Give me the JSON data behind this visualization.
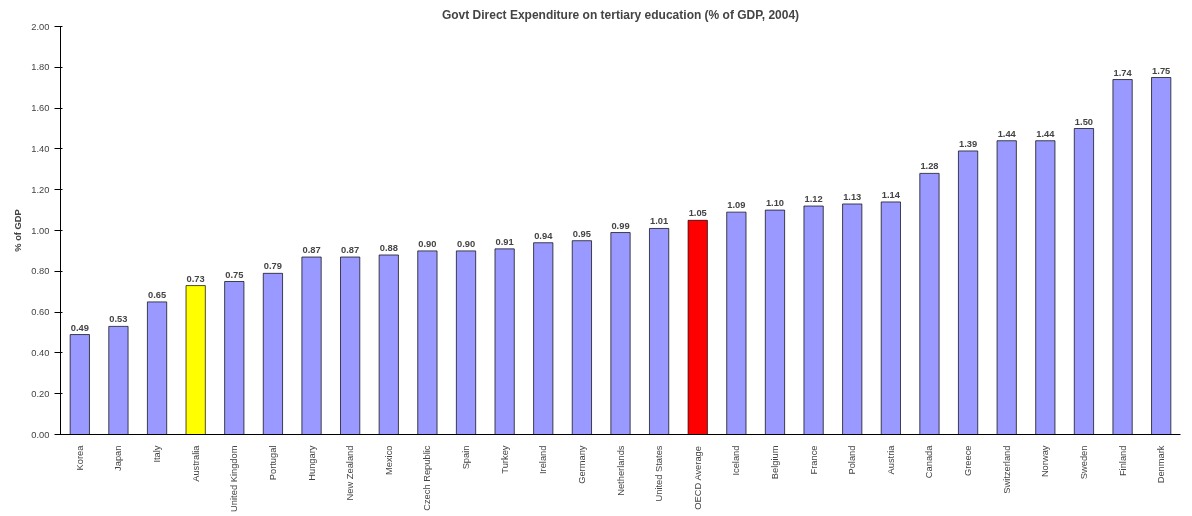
{
  "chart_data": {
    "type": "bar",
    "title": "Govt Direct Expenditure on tertiary education (% of GDP, 2004)",
    "ylabel": "% of GDP",
    "categories": [
      "Korea",
      "Japan",
      "Italy",
      "Australia",
      "United Kingdom",
      "Portugal",
      "Hungary",
      "New Zealand",
      "Mexico",
      "Czech Republic",
      "Spain",
      "Turkey",
      "Ireland",
      "Germany",
      "Netherlands",
      "United States",
      "OECD Average",
      "Iceland",
      "Belgium",
      "France",
      "Poland",
      "Austria",
      "Canada",
      "Greece",
      "Switzerland",
      "Norway",
      "Sweden",
      "Finland",
      "Denmark"
    ],
    "values": [
      0.49,
      0.53,
      0.65,
      0.73,
      0.75,
      0.79,
      0.87,
      0.87,
      0.88,
      0.9,
      0.9,
      0.91,
      0.94,
      0.95,
      0.99,
      1.01,
      1.05,
      1.09,
      1.1,
      1.12,
      1.13,
      1.14,
      1.28,
      1.39,
      1.44,
      1.44,
      1.5,
      1.74,
      1.75
    ],
    "value_labels": [
      "0.49",
      "0.53",
      "0.65",
      "0.73",
      "0.75",
      "0.79",
      "0.87",
      "0.87",
      "0.88",
      "0.90",
      "0.90",
      "0.91",
      "0.94",
      "0.95",
      "0.99",
      "1.01",
      "1.05",
      "1.09",
      "1.10",
      "1.12",
      "1.13",
      "1.14",
      "1.28",
      "1.39",
      "1.44",
      "1.44",
      "1.50",
      "1.74",
      "1.75"
    ],
    "colors": [
      "#9999ff",
      "#9999ff",
      "#9999ff",
      "#ffff00",
      "#9999ff",
      "#9999ff",
      "#9999ff",
      "#9999ff",
      "#9999ff",
      "#9999ff",
      "#9999ff",
      "#9999ff",
      "#9999ff",
      "#9999ff",
      "#9999ff",
      "#9999ff",
      "#ff0000",
      "#9999ff",
      "#9999ff",
      "#9999ff",
      "#9999ff",
      "#9999ff",
      "#9999ff",
      "#9999ff",
      "#9999ff",
      "#9999ff",
      "#9999ff",
      "#9999ff",
      "#9999ff"
    ],
    "ylim": [
      0,
      2
    ],
    "yticks": [
      {
        "value": 0,
        "label": "0.00"
      },
      {
        "value": 0.2,
        "label": "0.20"
      },
      {
        "value": 0.4,
        "label": "0.40"
      },
      {
        "value": 0.6,
        "label": "0.60"
      },
      {
        "value": 0.8,
        "label": "0.80"
      },
      {
        "value": 1.0,
        "label": "1.00"
      },
      {
        "value": 1.2,
        "label": "1.20"
      },
      {
        "value": 1.4,
        "label": "1.40"
      },
      {
        "value": 1.6,
        "label": "1.60"
      },
      {
        "value": 1.8,
        "label": "1.80"
      },
      {
        "value": 2.0,
        "label": "2.00"
      }
    ],
    "grid": false
  }
}
